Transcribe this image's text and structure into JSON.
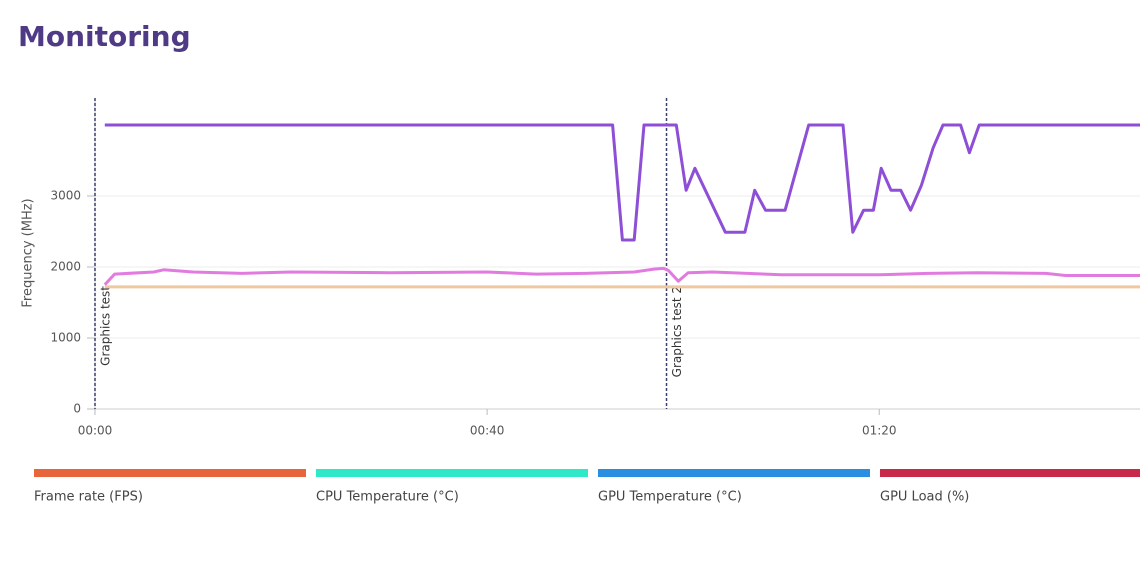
{
  "header": {
    "title": "Monitoring"
  },
  "chart_data": {
    "type": "line",
    "y_label": "Frequency (MHz)",
    "xlim": [
      0,
      106.6
    ],
    "ylim": [
      0,
      4380
    ],
    "xticks": [
      {
        "value": 0,
        "label": "00:00"
      },
      {
        "value": 40,
        "label": "00:40"
      },
      {
        "value": 80,
        "label": "01:20"
      }
    ],
    "yticks": [
      0,
      1000,
      2000,
      3000
    ],
    "grid": true,
    "annotations": [
      {
        "x": 0,
        "label": "Graphics test"
      },
      {
        "x": 58.3,
        "label": "Graphics test 2"
      }
    ],
    "series": [
      {
        "color": "#8e4fd6",
        "x": [
          1,
          52.8,
          53.8,
          55,
          56,
          59.3,
          60.3,
          61.2,
          64.3,
          66.3,
          67.3,
          68.4,
          70.4,
          72.8,
          76.3,
          77.3,
          78.4,
          79.4,
          80.2,
          81.2,
          82.2,
          83.2,
          84.3,
          85.5,
          86.5,
          88.3,
          89.2,
          90.2,
          106.6
        ],
        "values": [
          4000,
          4000,
          2380,
          2380,
          4000,
          4000,
          3080,
          3390,
          2490,
          2490,
          3080,
          2800,
          2800,
          4000,
          4000,
          2490,
          2800,
          2800,
          3390,
          3080,
          3080,
          2800,
          3150,
          3680,
          4000,
          4000,
          3610,
          4000,
          4000
        ]
      },
      {
        "color": "#e27be0",
        "x": [
          1,
          2,
          6,
          7,
          10,
          15,
          20,
          30,
          40,
          45,
          50,
          55,
          57,
          58,
          58.5,
          59.5,
          60.5,
          63,
          70,
          80,
          85,
          90,
          97,
          99,
          106.6
        ],
        "values": [
          1750,
          1900,
          1930,
          1960,
          1930,
          1910,
          1930,
          1920,
          1930,
          1900,
          1910,
          1930,
          1970,
          1980,
          1950,
          1800,
          1920,
          1930,
          1890,
          1890,
          1910,
          1920,
          1910,
          1880,
          1880
        ]
      },
      {
        "color": "#f0c8a0",
        "x": [
          1,
          106.6
        ],
        "values": [
          1720,
          1720
        ]
      }
    ],
    "legend": [
      {
        "name": "Frame rate (FPS)",
        "color": "#e8643a"
      },
      {
        "name": "CPU Temperature (°C)",
        "color": "#2ee8c8"
      },
      {
        "name": "GPU Temperature (°C)",
        "color": "#2a8fe0"
      },
      {
        "name": "GPU Load (%)",
        "color": "#c8284a"
      }
    ]
  }
}
